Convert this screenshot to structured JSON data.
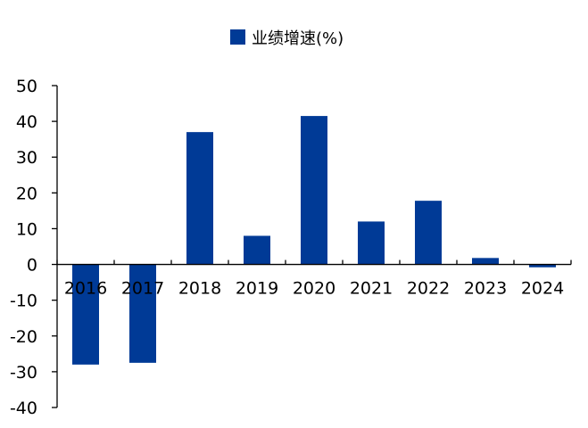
{
  "chart_data": {
    "type": "bar",
    "title": "",
    "xlabel": "",
    "ylabel": "",
    "categories": [
      "2016",
      "2017",
      "2018",
      "2019",
      "2020",
      "2021",
      "2022",
      "2023",
      "2024"
    ],
    "series": [
      {
        "name": "业绩增速(%)",
        "color": "#003a96",
        "values": [
          -28,
          -27.5,
          37,
          8,
          41.5,
          12,
          17.8,
          1.8,
          -0.8
        ]
      }
    ],
    "ylim": [
      -40,
      50
    ],
    "yticks": [
      "50",
      "40",
      "30",
      "20",
      "10",
      "0",
      "-10",
      "-20",
      "-30",
      "-40"
    ],
    "grid": false,
    "legend": "top-center"
  }
}
